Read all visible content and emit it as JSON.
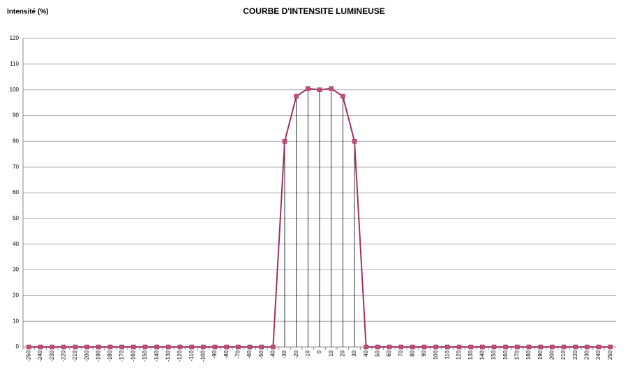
{
  "chart_data": {
    "type": "line",
    "title": "COURBE D'INTENSITE LUMINEUSE",
    "y_label": "Intensité (%)",
    "categories": [
      "-250",
      "-240",
      "-230",
      "-220",
      "-210",
      "-200",
      "-190",
      "-180",
      "-170",
      "-160",
      "-150",
      "-140",
      "-130",
      "-120",
      "-110",
      "-100",
      "-90",
      "-80",
      "-70",
      "-60",
      "-50",
      "-40",
      "-30",
      "-20",
      "-10",
      "0",
      "10",
      "20",
      "30",
      "40",
      "50",
      "60",
      "70",
      "80",
      "90",
      "100",
      "110",
      "120",
      "130",
      "140",
      "150",
      "160",
      "170",
      "180",
      "190",
      "200",
      "210",
      "220",
      "230",
      "240",
      "250"
    ],
    "values": [
      0,
      0,
      0,
      0,
      0,
      0,
      0,
      0,
      0,
      0,
      0,
      0,
      0,
      0,
      0,
      0,
      0,
      0,
      0,
      0,
      0,
      0,
      80,
      97.5,
      100.5,
      100,
      100.5,
      97.5,
      80,
      0,
      0,
      0,
      0,
      0,
      0,
      0,
      0,
      0,
      0,
      0,
      0,
      0,
      0,
      0,
      0,
      0,
      0,
      0,
      0,
      0,
      0
    ],
    "color": "#a0306a",
    "marker_color": "#c0506e",
    "drop_lines": true,
    "ylim": [
      0,
      120
    ],
    "yticks": [
      0,
      10,
      20,
      30,
      40,
      50,
      60,
      70,
      80,
      90,
      100,
      110,
      120
    ],
    "grid": true
  }
}
